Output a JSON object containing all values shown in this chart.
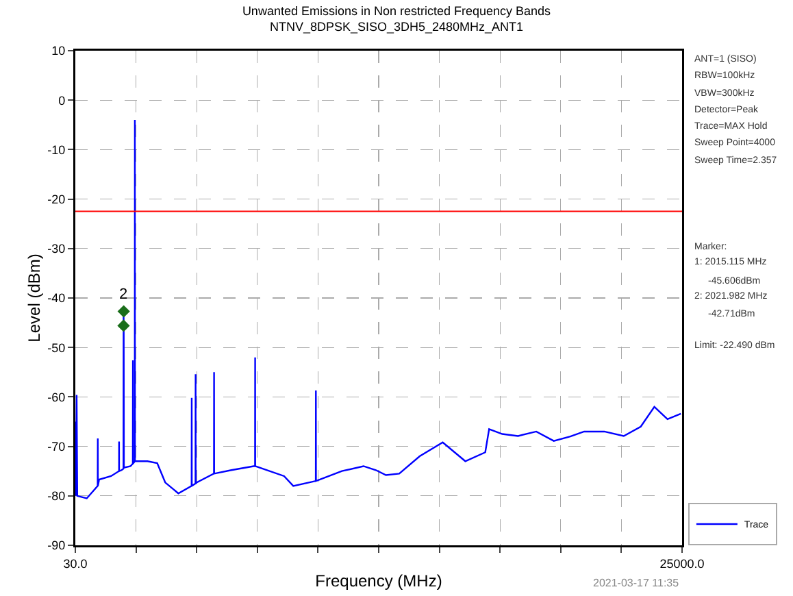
{
  "chart_data": {
    "type": "line",
    "title": "Unwanted Emissions in Non restricted Frequency Bands",
    "subtitle": "NTNV_8DPSK_SISO_3DH5_2480MHz_ANT1",
    "xlabel": "Frequency (MHz)",
    "ylabel": "Level (dBm)",
    "series": [
      {
        "name": "Trace",
        "color": "#0000ff",
        "x": [
          30,
          60,
          84,
          110,
          500,
          950,
          955,
          960,
          1010,
          1500,
          1828,
          1830,
          1832,
          1934,
          2010,
          2015,
          2022,
          2030,
          2300,
          2395,
          2400,
          2405,
          2475,
          2480,
          2485,
          2530,
          3000,
          3400,
          3730,
          4270,
          4815,
          4820,
          4825,
          4975,
          4980,
          4985,
          5030,
          5735,
          5740,
          5745,
          6450,
          7370,
          7425,
          7430,
          7435,
          8620,
          9000,
          9925,
          9930,
          9935,
          10100,
          11000,
          11890,
          12400,
          12814,
          13360,
          14200,
          15150,
          16080,
          16900,
          17060,
          17600,
          18250,
          19000,
          19720,
          20400,
          20970,
          21800,
          22600,
          23300,
          23860,
          24400,
          24950
        ],
        "values": [
          -65,
          -80,
          -59.6,
          -80,
          -80.5,
          -78,
          -68.4,
          -78,
          -76.7,
          -76,
          -75,
          -69,
          -75,
          -74.8,
          -74.5,
          -42.7,
          -45.6,
          -74.3,
          -74,
          -73.5,
          -52.6,
          -73.5,
          -73,
          -4,
          -73,
          -73,
          -73,
          -73.4,
          -77.3,
          -79.5,
          -78,
          -60.2,
          -78,
          -77.5,
          -55.4,
          -77.5,
          -77.3,
          -75.5,
          -55,
          -75.5,
          -74.8,
          -74,
          -74,
          -52,
          -74,
          -76,
          -78,
          -77,
          -58.7,
          -77,
          -76.7,
          -75,
          -74,
          -74.8,
          -75.8,
          -75.5,
          -72,
          -69.2,
          -73,
          -71.2,
          -66.5,
          -67.5,
          -67.9,
          -67,
          -68.9,
          -68,
          -67,
          -67,
          -67.9,
          -66,
          -62,
          -64.5,
          -63.4
        ]
      },
      {
        "type": "scatter",
        "color": "#1a6e1a",
        "marker": "diamond",
        "x": [
          2015.115,
          2021.982
        ],
        "values": [
          -45.6,
          -42.7
        ]
      }
    ],
    "xlim": [
      30,
      25000
    ],
    "xticks": [
      {
        "value": 30,
        "label": "30.0"
      },
      {
        "value": 2527,
        "label": null
      },
      {
        "value": 5024,
        "label": null
      },
      {
        "value": 7521,
        "label": null
      },
      {
        "value": 10018,
        "label": null
      },
      {
        "value": 12515,
        "label": null
      },
      {
        "value": 15012,
        "label": null
      },
      {
        "value": 17509,
        "label": null
      },
      {
        "value": 20006,
        "label": null
      },
      {
        "value": 22503,
        "label": null
      },
      {
        "value": 25000,
        "label": "25000.0"
      }
    ],
    "ylim": [
      -90,
      10
    ],
    "yticks": [
      -90,
      -80,
      -70,
      -60,
      -50,
      -40,
      -30,
      -20,
      -10,
      0,
      10
    ],
    "ref_lines": [
      {
        "axis": "y",
        "value": -22.49,
        "color": "#ff0000"
      }
    ],
    "annotations": [
      "2",
      "ANT=1 (SISO)",
      "RBW=100kHz",
      "VBW=300kHz",
      "Detector=Peak",
      "Trace=MAX Hold",
      "Sweep Point=4000",
      "Sweep Time=2.357",
      "Marker:",
      "1: 2015.115 MHz",
      "-45.606dBm",
      "2: 2021.982 MHz",
      "-42.71dBm",
      "Limit: -22.490 dBm",
      "2021-03-17 11:35"
    ],
    "grid": true,
    "legend": "bottom right",
    "line_style": "solid",
    "marker": "none"
  }
}
